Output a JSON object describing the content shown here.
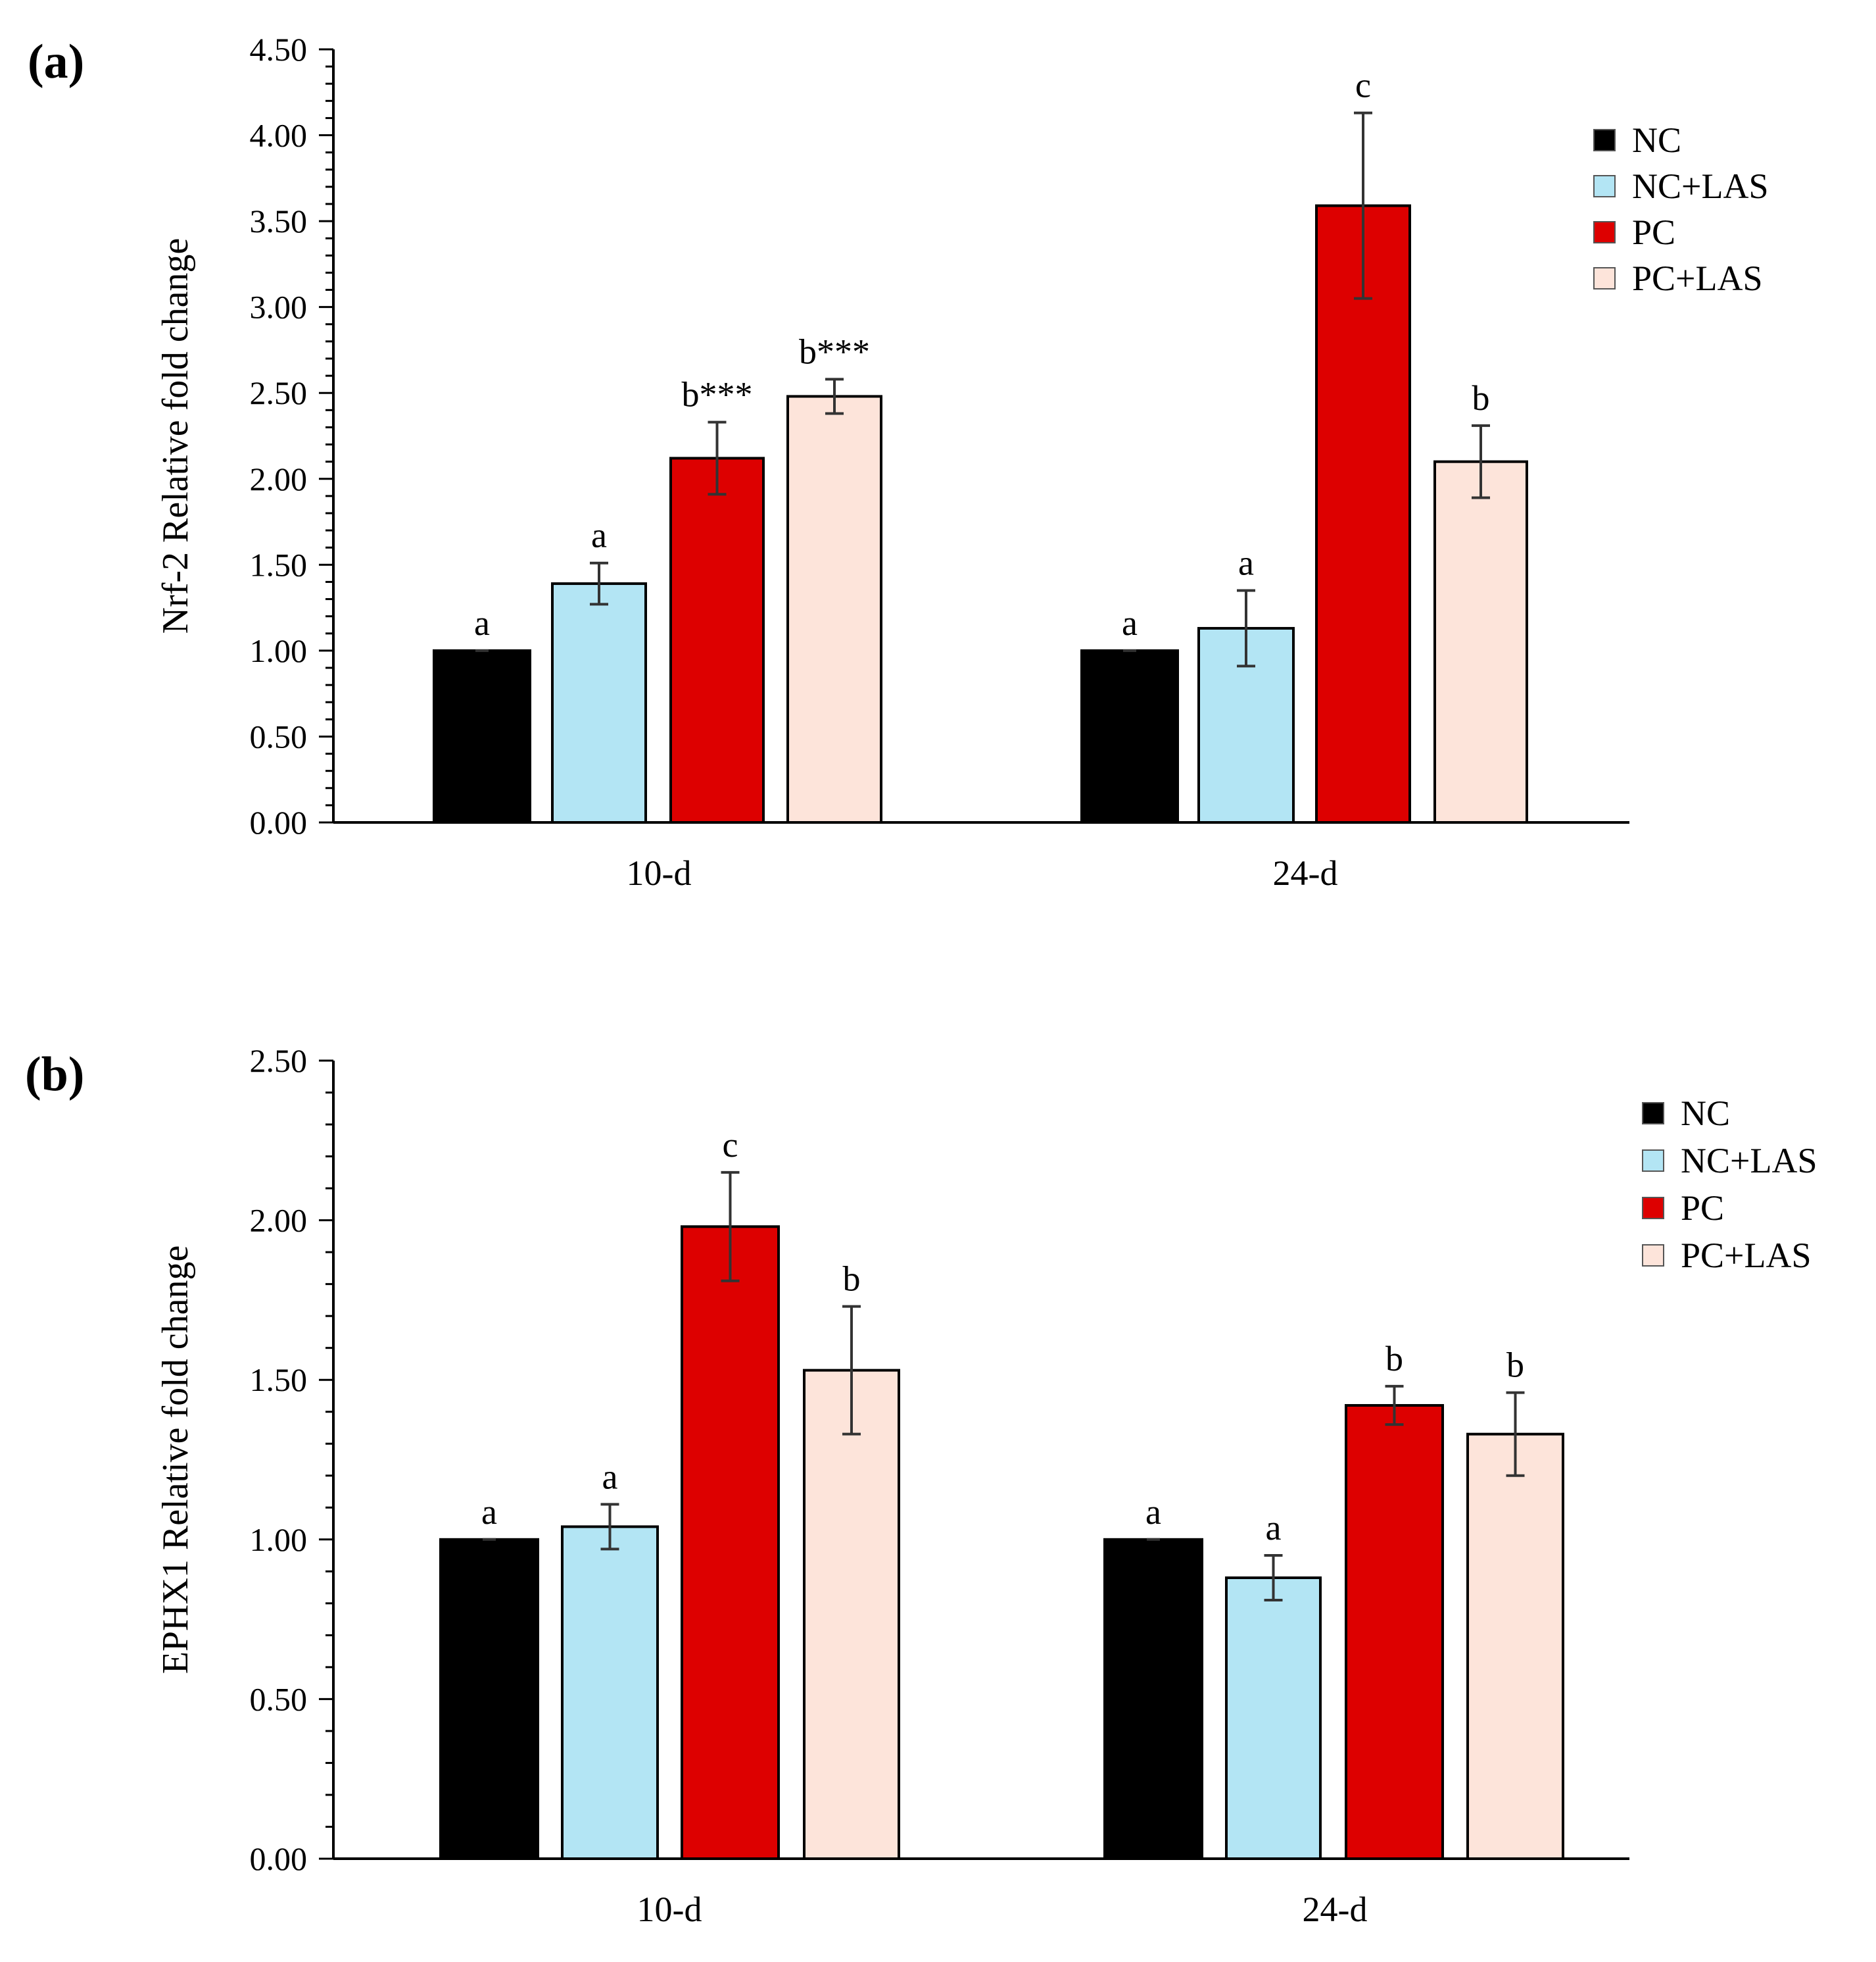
{
  "colors": {
    "NC": "#000000",
    "NC+LAS": "#b3e5f4",
    "PC": "#dd0000",
    "PC+LAS": "#fde4da",
    "error_bar": "#333333"
  },
  "chart_data": [
    {
      "type": "bar",
      "panel_label": "(a)",
      "title": "",
      "xlabel": "",
      "ylabel": "Nrf-2 Relative  fold change",
      "ylim": [
        0,
        4.5
      ],
      "yticks": [
        "0.00",
        "0.50",
        "1.00",
        "1.50",
        "2.00",
        "2.50",
        "3.00",
        "3.50",
        "4.00",
        "4.50"
      ],
      "minor_ticks_per_major": 5,
      "categories": [
        "10-d",
        "24-d"
      ],
      "legend": [
        "NC",
        "NC+LAS",
        "PC",
        "PC+LAS"
      ],
      "legend_position": "top-right",
      "series": [
        {
          "name": "NC",
          "values": [
            1.0,
            1.0
          ],
          "errors": [
            0.0,
            0.0
          ],
          "labels": [
            "a",
            "a"
          ]
        },
        {
          "name": "NC+LAS",
          "values": [
            1.39,
            1.13
          ],
          "errors": [
            0.12,
            0.22
          ],
          "labels": [
            "a",
            "a"
          ]
        },
        {
          "name": "PC",
          "values": [
            2.12,
            3.59
          ],
          "errors": [
            0.21,
            0.54
          ],
          "labels": [
            "b***",
            "c"
          ]
        },
        {
          "name": "PC+LAS",
          "values": [
            2.48,
            2.1
          ],
          "errors": [
            0.1,
            0.21
          ],
          "labels": [
            "b***",
            "b"
          ]
        }
      ]
    },
    {
      "type": "bar",
      "panel_label": "(b)",
      "title": "",
      "xlabel": "",
      "ylabel": "EPHX1  Relative  fold change",
      "ylim": [
        0,
        2.5
      ],
      "yticks": [
        "0.00",
        "0.50",
        "1.00",
        "1.50",
        "2.00",
        "2.50"
      ],
      "minor_ticks_per_major": 5,
      "categories": [
        "10-d",
        "24-d"
      ],
      "legend": [
        "NC",
        "NC+LAS",
        "PC",
        "PC+LAS"
      ],
      "legend_position": "top-right",
      "series": [
        {
          "name": "NC",
          "values": [
            1.0,
            1.0
          ],
          "errors": [
            0.0,
            0.0
          ],
          "labels": [
            "a",
            "a"
          ]
        },
        {
          "name": "NC+LAS",
          "values": [
            1.04,
            0.88
          ],
          "errors": [
            0.07,
            0.07
          ],
          "labels": [
            "a",
            "a"
          ]
        },
        {
          "name": "PC",
          "values": [
            1.98,
            1.42
          ],
          "errors": [
            0.17,
            0.06
          ],
          "labels": [
            "c",
            "b"
          ]
        },
        {
          "name": "PC+LAS",
          "values": [
            1.53,
            1.33
          ],
          "errors": [
            0.2,
            0.13
          ],
          "labels": [
            "b",
            "b"
          ]
        }
      ]
    }
  ]
}
